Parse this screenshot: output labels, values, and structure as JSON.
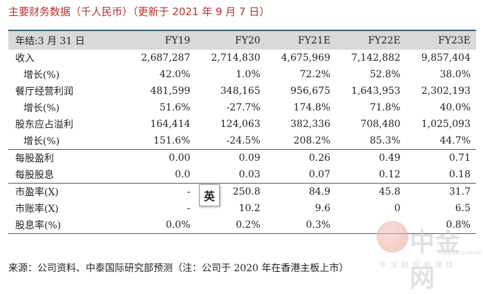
{
  "title": "主要财务数据（千人民币）（更新于 2021 年 9 月 7 日）",
  "columns": [
    "年结:3 月 31 日",
    "FY19",
    "FY20",
    "FY21E",
    "FY22E",
    "FY23E"
  ],
  "rows": [
    {
      "label": "收入",
      "values": [
        "2,687,287",
        "2,714,830",
        "4,675,969",
        "7,142,882",
        "9,857,404"
      ]
    },
    {
      "label": "增长(%)",
      "values": [
        "42.0%",
        "1.0%",
        "72.2%",
        "52.8%",
        "38.0%"
      ]
    },
    {
      "label": "餐厅经营利润",
      "values": [
        "481,599",
        "348,165",
        "956,675",
        "1,643,953",
        "2,302,193"
      ]
    },
    {
      "label": "增长(%)",
      "values": [
        "51.6%",
        "-27.7%",
        "174.8%",
        "71.8%",
        "40.0%"
      ]
    },
    {
      "label": "股东应占溢利",
      "values": [
        "164,414",
        "124,063",
        "382,336",
        "708,480",
        "1,025,093"
      ]
    },
    {
      "label": "增长(%)",
      "values": [
        "151.6%",
        "-24.5%",
        "208.2%",
        "85.3%",
        "44.7%"
      ]
    },
    {
      "label": "每股盈利",
      "values": [
        "0.00",
        "0.09",
        "0.26",
        "0.49",
        "0.71"
      ]
    },
    {
      "label": "每股股息",
      "values": [
        "0.0",
        "0.03",
        "0.07",
        "0.12",
        "0.18"
      ]
    },
    {
      "label": "市盈率(X)",
      "values": [
        "-",
        "250.8",
        "84.9",
        "45.8",
        "31.7"
      ]
    },
    {
      "label": "市账率(X)",
      "values": [
        "-",
        "10.2",
        "9.6",
        "0",
        "6.5"
      ]
    },
    {
      "label": "股息率(%)",
      "values": [
        "0.0%",
        "0.2%",
        "0.3%",
        "",
        "0.8%"
      ]
    }
  ],
  "source": "来源：公司资料、中泰国际研究部预测（注：公司于 2020 年在香港主板上市）",
  "popup_char": "英",
  "watermark": {
    "name": "中金网",
    "url": "CNGOLD.COM.CN",
    "subtitle": "中文财经新媒体"
  }
}
